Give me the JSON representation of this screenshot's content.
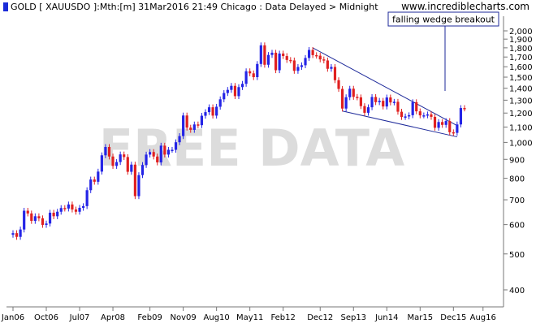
{
  "header": {
    "title": "GOLD [ XAUUSDO ]:Mth:[m]  31Mar2016 21:49 Chicago : Data Delayed > Midnight",
    "site": "www.incrediblecharts.com"
  },
  "colors": {
    "up": "#2424e6",
    "down": "#e02020",
    "trend": "#1e2a9a",
    "axis": "#777777",
    "watermark": "#dcdcdc",
    "grid": "#bdbdbd"
  },
  "chart_data": {
    "type": "candlestick",
    "title": "GOLD [ XAUUSDO ]:Mth:[m]  31Mar2016 21:49 Chicago : Data Delayed > Midnight",
    "watermark": "FREE DATA",
    "annotation": "falling wedge breakout",
    "y_scale": "log",
    "ylim": [
      390,
      2050
    ],
    "yticks": [
      400,
      500,
      600,
      700,
      800,
      900,
      1000,
      1100,
      1200,
      1300,
      1400,
      1500,
      1600,
      1700,
      1800,
      1900,
      2000
    ],
    "ytick_labels": [
      "400",
      "500",
      "600",
      "700",
      "800",
      "900",
      "1,000",
      "1,100",
      "1,200",
      "1,300",
      "1,400",
      "1,500",
      "1,600",
      "1,700",
      "1,800",
      "1,900",
      "2,000"
    ],
    "xlim": [
      "2006-01",
      "2016-12"
    ],
    "xticks": [
      {
        "date": "2006-01",
        "label": "Jan06"
      },
      {
        "date": "2006-10",
        "label": "Oct06"
      },
      {
        "date": "2007-07",
        "label": "Jul07"
      },
      {
        "date": "2008-04",
        "label": "Apr08"
      },
      {
        "date": "2009-02",
        "label": "Feb09"
      },
      {
        "date": "2009-11",
        "label": "Nov09"
      },
      {
        "date": "2010-08",
        "label": "Aug10"
      },
      {
        "date": "2011-05",
        "label": "May11"
      },
      {
        "date": "2012-02",
        "label": "Feb12"
      },
      {
        "date": "2012-12",
        "label": "Dec12"
      },
      {
        "date": "2013-09",
        "label": "Sep13"
      },
      {
        "date": "2014-06",
        "label": "Jun14"
      },
      {
        "date": "2015-03",
        "label": "Mar15"
      },
      {
        "date": "2015-12",
        "label": "Dec15"
      },
      {
        "date": "2016-08",
        "label": "Aug16"
      }
    ],
    "closes": [
      {
        "date": "2006-01",
        "close": 569
      },
      {
        "date": "2006-02",
        "close": 556
      },
      {
        "date": "2006-03",
        "close": 582
      },
      {
        "date": "2006-04",
        "close": 654
      },
      {
        "date": "2006-05",
        "close": 643
      },
      {
        "date": "2006-06",
        "close": 614
      },
      {
        "date": "2006-07",
        "close": 632
      },
      {
        "date": "2006-08",
        "close": 624
      },
      {
        "date": "2006-09",
        "close": 599
      },
      {
        "date": "2006-10",
        "close": 604
      },
      {
        "date": "2006-11",
        "close": 646
      },
      {
        "date": "2006-12",
        "close": 632
      },
      {
        "date": "2007-01",
        "close": 650
      },
      {
        "date": "2007-02",
        "close": 665
      },
      {
        "date": "2007-03",
        "close": 663
      },
      {
        "date": "2007-04",
        "close": 680
      },
      {
        "date": "2007-05",
        "close": 659
      },
      {
        "date": "2007-06",
        "close": 650
      },
      {
        "date": "2007-07",
        "close": 666
      },
      {
        "date": "2007-08",
        "close": 673
      },
      {
        "date": "2007-09",
        "close": 743
      },
      {
        "date": "2007-10",
        "close": 794
      },
      {
        "date": "2007-11",
        "close": 783
      },
      {
        "date": "2007-12",
        "close": 834
      },
      {
        "date": "2008-01",
        "close": 923
      },
      {
        "date": "2008-02",
        "close": 972
      },
      {
        "date": "2008-03",
        "close": 916
      },
      {
        "date": "2008-04",
        "close": 864
      },
      {
        "date": "2008-05",
        "close": 885
      },
      {
        "date": "2008-06",
        "close": 928
      },
      {
        "date": "2008-07",
        "close": 913
      },
      {
        "date": "2008-08",
        "close": 833
      },
      {
        "date": "2008-09",
        "close": 871
      },
      {
        "date": "2008-10",
        "close": 716
      },
      {
        "date": "2008-11",
        "close": 816
      },
      {
        "date": "2008-12",
        "close": 869
      },
      {
        "date": "2009-01",
        "close": 927
      },
      {
        "date": "2009-02",
        "close": 942
      },
      {
        "date": "2009-03",
        "close": 916
      },
      {
        "date": "2009-04",
        "close": 883
      },
      {
        "date": "2009-05",
        "close": 980
      },
      {
        "date": "2009-06",
        "close": 927
      },
      {
        "date": "2009-07",
        "close": 955
      },
      {
        "date": "2009-08",
        "close": 955
      },
      {
        "date": "2009-09",
        "close": 1001
      },
      {
        "date": "2009-10",
        "close": 1040
      },
      {
        "date": "2009-11",
        "close": 1182
      },
      {
        "date": "2009-12",
        "close": 1096
      },
      {
        "date": "2010-01",
        "close": 1081
      },
      {
        "date": "2010-02",
        "close": 1118
      },
      {
        "date": "2010-03",
        "close": 1113
      },
      {
        "date": "2010-04",
        "close": 1180
      },
      {
        "date": "2010-05",
        "close": 1207
      },
      {
        "date": "2010-06",
        "close": 1244
      },
      {
        "date": "2010-07",
        "close": 1181
      },
      {
        "date": "2010-08",
        "close": 1248
      },
      {
        "date": "2010-09",
        "close": 1307
      },
      {
        "date": "2010-10",
        "close": 1359
      },
      {
        "date": "2010-11",
        "close": 1386
      },
      {
        "date": "2010-12",
        "close": 1421
      },
      {
        "date": "2011-01",
        "close": 1333
      },
      {
        "date": "2011-02",
        "close": 1410
      },
      {
        "date": "2011-03",
        "close": 1439
      },
      {
        "date": "2011-04",
        "close": 1556
      },
      {
        "date": "2011-05",
        "close": 1536
      },
      {
        "date": "2011-06",
        "close": 1500
      },
      {
        "date": "2011-07",
        "close": 1628
      },
      {
        "date": "2011-08",
        "close": 1828
      },
      {
        "date": "2011-09",
        "close": 1620
      },
      {
        "date": "2011-10",
        "close": 1722
      },
      {
        "date": "2011-11",
        "close": 1746
      },
      {
        "date": "2011-12",
        "close": 1566
      },
      {
        "date": "2012-01",
        "close": 1737
      },
      {
        "date": "2012-02",
        "close": 1710
      },
      {
        "date": "2012-03",
        "close": 1669
      },
      {
        "date": "2012-04",
        "close": 1664
      },
      {
        "date": "2012-05",
        "close": 1560
      },
      {
        "date": "2012-06",
        "close": 1598
      },
      {
        "date": "2012-07",
        "close": 1615
      },
      {
        "date": "2012-08",
        "close": 1690
      },
      {
        "date": "2012-09",
        "close": 1776
      },
      {
        "date": "2012-10",
        "close": 1720
      },
      {
        "date": "2012-11",
        "close": 1714
      },
      {
        "date": "2012-12",
        "close": 1675
      },
      {
        "date": "2013-01",
        "close": 1664
      },
      {
        "date": "2013-02",
        "close": 1580
      },
      {
        "date": "2013-03",
        "close": 1598
      },
      {
        "date": "2013-04",
        "close": 1472
      },
      {
        "date": "2013-05",
        "close": 1394
      },
      {
        "date": "2013-06",
        "close": 1234
      },
      {
        "date": "2013-07",
        "close": 1324
      },
      {
        "date": "2013-08",
        "close": 1396
      },
      {
        "date": "2013-09",
        "close": 1327
      },
      {
        "date": "2013-10",
        "close": 1323
      },
      {
        "date": "2013-11",
        "close": 1253
      },
      {
        "date": "2013-12",
        "close": 1202
      },
      {
        "date": "2014-01",
        "close": 1244
      },
      {
        "date": "2014-02",
        "close": 1326
      },
      {
        "date": "2014-03",
        "close": 1284
      },
      {
        "date": "2014-04",
        "close": 1295
      },
      {
        "date": "2014-05",
        "close": 1250
      },
      {
        "date": "2014-06",
        "close": 1322
      },
      {
        "date": "2014-07",
        "close": 1282
      },
      {
        "date": "2014-08",
        "close": 1287
      },
      {
        "date": "2014-09",
        "close": 1210
      },
      {
        "date": "2014-10",
        "close": 1171
      },
      {
        "date": "2014-11",
        "close": 1175
      },
      {
        "date": "2014-12",
        "close": 1184
      },
      {
        "date": "2015-01",
        "close": 1284
      },
      {
        "date": "2015-02",
        "close": 1213
      },
      {
        "date": "2015-03",
        "close": 1183
      },
      {
        "date": "2015-04",
        "close": 1183
      },
      {
        "date": "2015-05",
        "close": 1190
      },
      {
        "date": "2015-06",
        "close": 1172
      },
      {
        "date": "2015-07",
        "close": 1095
      },
      {
        "date": "2015-08",
        "close": 1135
      },
      {
        "date": "2015-09",
        "close": 1115
      },
      {
        "date": "2015-10",
        "close": 1142
      },
      {
        "date": "2015-11",
        "close": 1065
      },
      {
        "date": "2015-12",
        "close": 1061
      },
      {
        "date": "2016-01",
        "close": 1118
      },
      {
        "date": "2016-02",
        "close": 1238
      },
      {
        "date": "2016-03",
        "close": 1235
      }
    ],
    "trendlines": [
      {
        "name": "upper wedge line",
        "from": {
          "date": "2012-10",
          "value": 1800
        },
        "to": {
          "date": "2016-01",
          "value": 1110
        }
      },
      {
        "name": "lower wedge line",
        "from": {
          "date": "2013-06",
          "value": 1215
        },
        "to": {
          "date": "2016-01",
          "value": 1035
        }
      }
    ]
  }
}
